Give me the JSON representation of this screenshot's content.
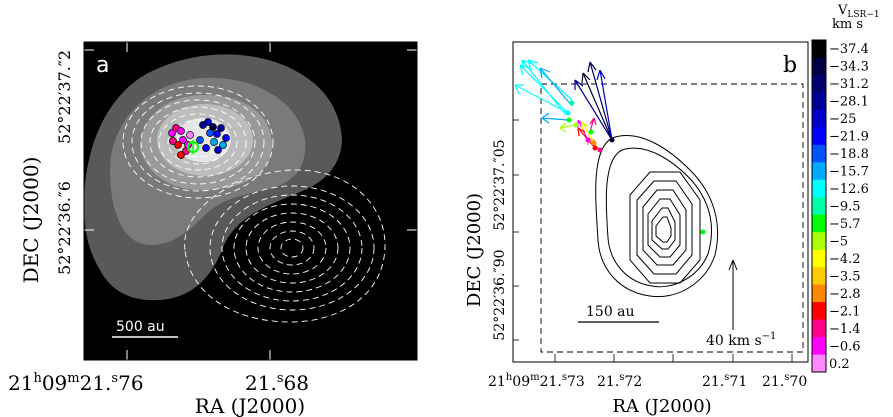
{
  "figure": {
    "panel_a": {
      "letter": "a",
      "scale_bar_label": "500 au",
      "y_axis_title": "DEC (J2000)",
      "x_axis_title": "RA (J2000)",
      "y_ticks": [
        "52°22′37.″2",
        "52°22′36.″6"
      ],
      "x_ticks": [
        {
          "main": "21",
          "h": "h",
          "mid": "09",
          "m": "m",
          "sec": "21.",
          "s": "s",
          "frac": "76"
        },
        {
          "main": "21.",
          "s": "s",
          "frac": "68"
        }
      ]
    },
    "panel_b": {
      "letter": "b",
      "scale_bar_label": "150 au",
      "velocity_arrow_label": "40 km s",
      "velocity_arrow_exp": "−1",
      "y_axis_title": "DEC (J2000)",
      "x_axis_title": "RA (J2000)",
      "y_ticks": [
        "52°22′37.″05",
        "52°22′36.″90"
      ],
      "x_ticks": [
        "21h09m21.s73",
        "21.s72",
        "21.s71",
        "21.s70"
      ],
      "x_ticks_parts": [
        {
          "main": "21",
          "h": "h",
          "mid": "09",
          "m": "m",
          "sec": "21.",
          "s": "s",
          "frac": "73"
        },
        {
          "main": "21.",
          "s": "s",
          "frac": "72"
        },
        {
          "main": "21.",
          "s": "s",
          "frac": "71"
        },
        {
          "main": "21.",
          "s": "s",
          "frac": "70"
        }
      ]
    },
    "colorbar": {
      "title_v": "V",
      "title_sub": "LSR",
      "title_sub2": "−1",
      "title_unit": "km s",
      "labels": [
        "−37.4",
        "−34.3",
        "−31.2",
        "−28.1",
        "−25",
        "−21.9",
        "−18.8",
        "−15.7",
        "−12.6",
        "−9.5",
        "−5.7",
        "−5",
        "−4.2",
        "−3.5",
        "−2.8",
        "−2.1",
        "−1.4",
        "−0.6",
        "0.2"
      ],
      "colors": [
        "#000000",
        "#000040",
        "#00006e",
        "#000099",
        "#0000cc",
        "#0000ff",
        "#0055ff",
        "#00aaff",
        "#00ffff",
        "#00ffaa",
        "#00ff00",
        "#aaff00",
        "#ffff00",
        "#ffcc00",
        "#ff8800",
        "#ff0000",
        "#ff0088",
        "#ff00ff",
        "#ff88ff"
      ]
    }
  }
}
